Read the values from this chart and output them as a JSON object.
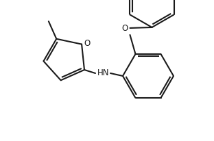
{
  "background_color": "#ffffff",
  "line_color": "#1a1a1a",
  "line_width": 1.5,
  "font_size": 8.5,
  "figsize": [
    3.12,
    2.07
  ],
  "dpi": 100,
  "xlim": [
    0,
    312
  ],
  "ylim": [
    0,
    207
  ]
}
